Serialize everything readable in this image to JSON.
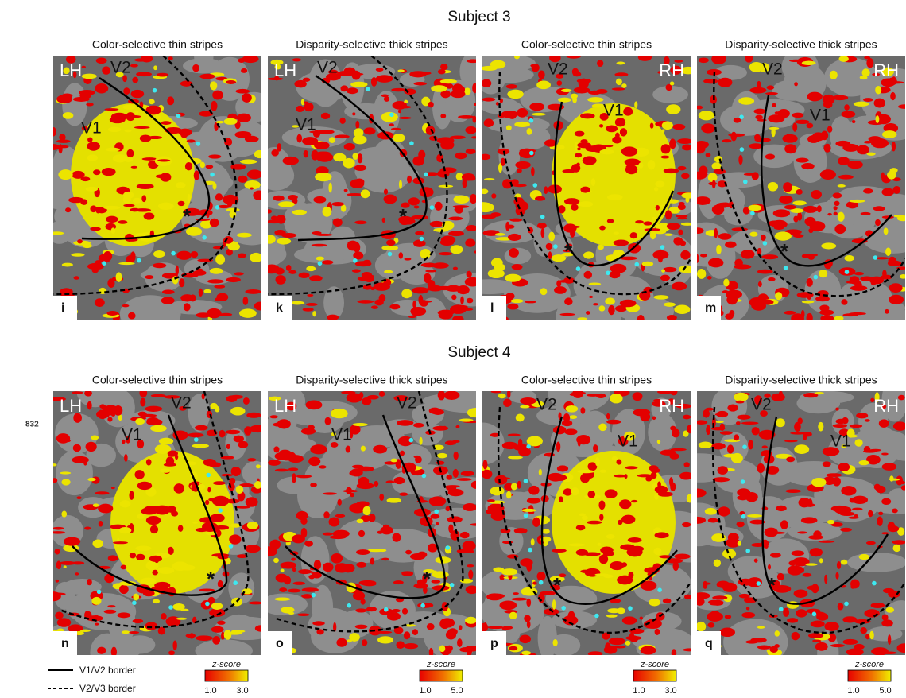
{
  "line_number": "832",
  "rows": [
    {
      "title": "Subject 3",
      "panels": [
        {
          "heading": "Color-selective thin stripes",
          "letter": "i",
          "hemisphere": "LH",
          "v1": "V1",
          "v2": "V2",
          "marker": "*"
        },
        {
          "heading": "Disparity-selective thick stripes",
          "letter": "k",
          "hemisphere": "LH",
          "v1": "V1",
          "v2": "V2",
          "marker": "*"
        },
        {
          "heading": "Color-selective thin stripes",
          "letter": "l",
          "hemisphere": "RH",
          "v1": "V1",
          "v2": "V2",
          "marker": "*"
        },
        {
          "heading": "Disparity-selective thick stripes",
          "letter": "m",
          "hemisphere": "RH",
          "v1": "V1",
          "v2": "V2",
          "marker": "*"
        }
      ]
    },
    {
      "title": "Subject 4",
      "panels": [
        {
          "heading": "Color-selective thin stripes",
          "letter": "n",
          "hemisphere": "LH",
          "v1": "V1",
          "v2": "V2",
          "marker": "*"
        },
        {
          "heading": "Disparity-selective thick stripes",
          "letter": "o",
          "hemisphere": "LH",
          "v1": "V1",
          "v2": "V2",
          "marker": "*"
        },
        {
          "heading": "Color-selective thin stripes",
          "letter": "p",
          "hemisphere": "RH",
          "v1": "V1",
          "v2": "V2",
          "marker": "*"
        },
        {
          "heading": "Disparity-selective thick stripes",
          "letter": "q",
          "hemisphere": "RH",
          "v1": "V1",
          "v2": "V2",
          "marker": "*"
        }
      ]
    }
  ],
  "legend": {
    "solid": "V1/V2 border",
    "dashed": "V2/V3 border"
  },
  "colorbars": [
    {
      "title": "z-score",
      "min": "1.0",
      "max": "3.0"
    },
    {
      "title": "z-score",
      "min": "1.0",
      "max": "5.0"
    },
    {
      "title": "z-score",
      "min": "1.0",
      "max": "3.0"
    },
    {
      "title": "z-score",
      "min": "1.0",
      "max": "5.0"
    }
  ]
}
